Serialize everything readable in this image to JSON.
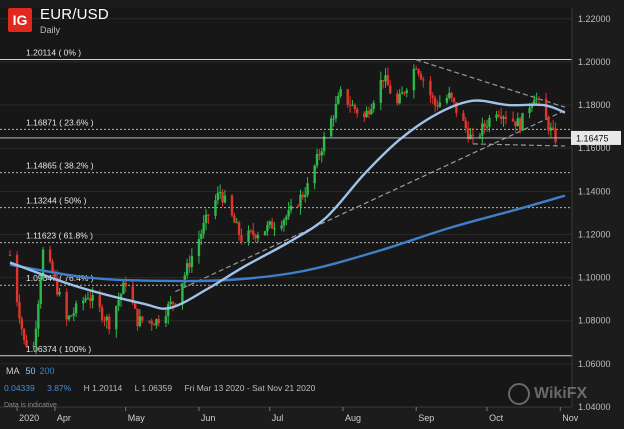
{
  "header": {
    "logo": "IG",
    "title": "EUR/USD",
    "subtitle": "Daily"
  },
  "ma_legend": {
    "label": "MA",
    "ma50_label": "50",
    "ma200_label": "200",
    "ma50_color": "#9ec3ea",
    "ma200_color": "#3f7fc9"
  },
  "stats": {
    "change": "0.04339",
    "change_pct": "3.87%",
    "high": "H 1.20114",
    "low": "L 1.06359",
    "range": "Fri Mar 13 2020 - Sat Nov 21 2020"
  },
  "note": "Data is indicative",
  "watermark": "WikiFX",
  "chart_data": {
    "type": "candlestick",
    "ylim": [
      1.04,
      1.225
    ],
    "yticks": [
      "1.22000",
      "1.20000",
      "1.18000",
      "1.16000",
      "1.14000",
      "1.12000",
      "1.10000",
      "1.08000",
      "1.06000",
      "1.04000"
    ],
    "ytick_values": [
      1.22,
      1.2,
      1.18,
      1.16,
      1.14,
      1.12,
      1.1,
      1.08,
      1.06,
      1.04
    ],
    "x_range": [
      "2020-03-13",
      "2020-11-03"
    ],
    "xticks": [
      {
        "label": "2020",
        "date": "2020-03-16"
      },
      {
        "label": "Apr",
        "date": "2020-04-01"
      },
      {
        "label": "May",
        "date": "2020-05-01"
      },
      {
        "label": "Jun",
        "date": "2020-06-01"
      },
      {
        "label": "Jul",
        "date": "2020-07-01"
      },
      {
        "label": "Aug",
        "date": "2020-08-01"
      },
      {
        "label": "Sep",
        "date": "2020-09-01"
      },
      {
        "label": "Oct",
        "date": "2020-10-01"
      },
      {
        "label": "Nov",
        "date": "2020-11-01"
      }
    ],
    "last_price": "1.16475",
    "last_value": 1.16475,
    "fib_levels": [
      {
        "label": "1.20114 ( 0% )",
        "value": 1.20114,
        "style": "solid"
      },
      {
        "label": "1.16871 ( 23.6% )",
        "value": 1.16871,
        "style": "dashed"
      },
      {
        "label": "1.14865 ( 38.2% )",
        "value": 1.14865,
        "style": "dashed"
      },
      {
        "label": "1.13244 ( 50% )",
        "value": 1.13244,
        "style": "dashed"
      },
      {
        "label": "1.11623 ( 61.8% )",
        "value": 1.11623,
        "style": "dashed"
      },
      {
        "label": "1.09647 ( 76.4% )",
        "value": 1.09647,
        "style": "dashed"
      },
      {
        "label": "1.06374 ( 100% )",
        "value": 1.06374,
        "style": "solid"
      }
    ],
    "trendlines": [
      {
        "from": [
          "2020-05-22",
          1.0935
        ],
        "to": [
          "2020-11-03",
          1.1775
        ]
      },
      {
        "from": [
          "2020-09-01",
          1.201
        ],
        "to": [
          "2020-11-03",
          1.179
        ]
      },
      {
        "from": [
          "2020-09-25",
          1.162
        ],
        "to": [
          "2020-11-03",
          1.161
        ]
      }
    ],
    "close_anchors": [
      [
        "2020-03-13",
        1.1105
      ],
      [
        "2020-03-19",
        1.07
      ],
      [
        "2020-03-23",
        1.068
      ],
      [
        "2020-03-27",
        1.112
      ],
      [
        "2020-03-31",
        1.102
      ],
      [
        "2020-04-06",
        1.08
      ],
      [
        "2020-04-15",
        1.092
      ],
      [
        "2020-04-24",
        1.079
      ],
      [
        "2020-05-01",
        1.098
      ],
      [
        "2020-05-06",
        1.08
      ],
      [
        "2020-05-14",
        1.08
      ],
      [
        "2020-05-22",
        1.09
      ],
      [
        "2020-05-29",
        1.11
      ],
      [
        "2020-06-05",
        1.129
      ],
      [
        "2020-06-10",
        1.14
      ],
      [
        "2020-06-19",
        1.118
      ],
      [
        "2020-06-30",
        1.123
      ],
      [
        "2020-07-09",
        1.129
      ],
      [
        "2020-07-17",
        1.142
      ],
      [
        "2020-07-24",
        1.164
      ],
      [
        "2020-07-31",
        1.185
      ],
      [
        "2020-08-10",
        1.174
      ],
      [
        "2020-08-18",
        1.193
      ],
      [
        "2020-08-24",
        1.18
      ],
      [
        "2020-09-01",
        1.199
      ],
      [
        "2020-09-09",
        1.18
      ],
      [
        "2020-09-15",
        1.184
      ],
      [
        "2020-09-25",
        1.163
      ],
      [
        "2020-10-05",
        1.178
      ],
      [
        "2020-10-15",
        1.171
      ],
      [
        "2020-10-21",
        1.185
      ],
      [
        "2020-10-28",
        1.168
      ],
      [
        "2020-10-30",
        1.1647
      ]
    ],
    "ma50_anchors": [
      [
        "2020-03-13",
        1.107
      ],
      [
        "2020-04-10",
        1.096
      ],
      [
        "2020-05-08",
        1.088
      ],
      [
        "2020-05-20",
        1.086
      ],
      [
        "2020-06-05",
        1.095
      ],
      [
        "2020-06-20",
        1.105
      ],
      [
        "2020-07-10",
        1.117
      ],
      [
        "2020-07-25",
        1.128
      ],
      [
        "2020-08-10",
        1.148
      ],
      [
        "2020-08-25",
        1.164
      ],
      [
        "2020-09-10",
        1.176
      ],
      [
        "2020-09-25",
        1.182
      ],
      [
        "2020-10-10",
        1.18
      ],
      [
        "2020-10-25",
        1.18
      ],
      [
        "2020-11-03",
        1.1765
      ]
    ],
    "ma200_anchors": [
      [
        "2020-03-13",
        1.106
      ],
      [
        "2020-04-15",
        1.1
      ],
      [
        "2020-05-15",
        1.0985
      ],
      [
        "2020-06-15",
        1.099
      ],
      [
        "2020-07-15",
        1.103
      ],
      [
        "2020-08-15",
        1.112
      ],
      [
        "2020-09-15",
        1.123
      ],
      [
        "2020-10-15",
        1.132
      ],
      [
        "2020-11-03",
        1.138
      ]
    ]
  }
}
